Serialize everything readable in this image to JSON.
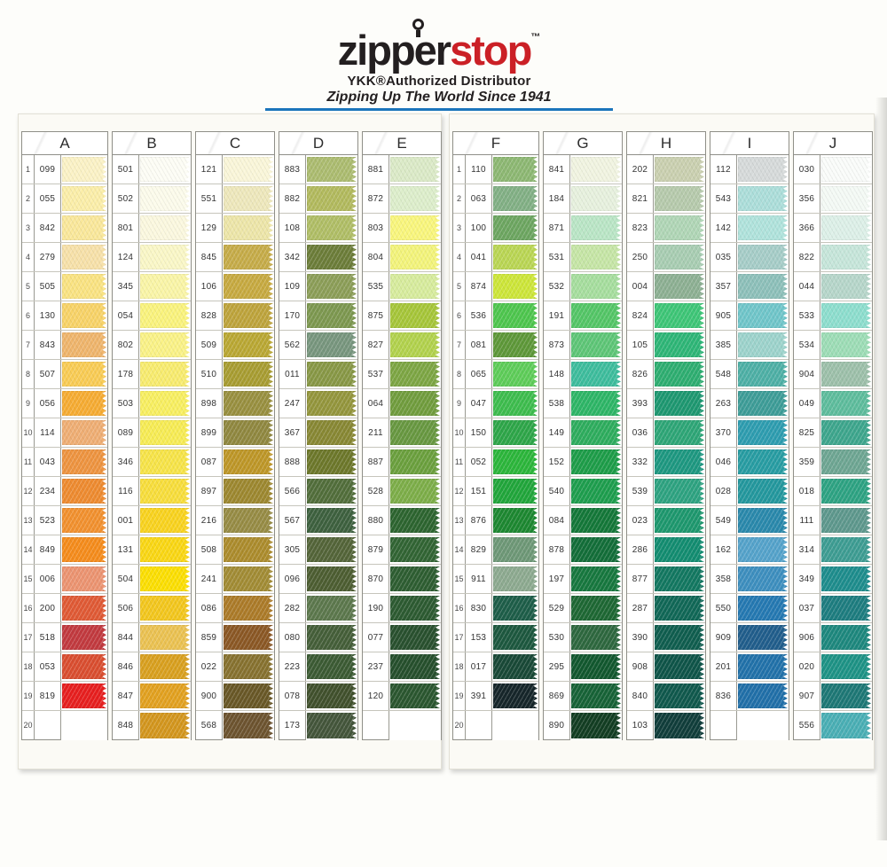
{
  "logo": {
    "brand_black": "zipper",
    "brand_red": "stop",
    "tm": "™",
    "line1": "YKK®Authorized Distributor",
    "line2": "Zipping Up The World Since 1941",
    "accent_red": "#CB2026",
    "accent_blue": "#1B75BB"
  },
  "icons": {
    "zipper_pull": "zipper-pull-ring"
  },
  "panels": [
    {
      "side": "left",
      "row_numbers": [
        "1",
        "2",
        "3",
        "4",
        "5",
        "6",
        "7",
        "8",
        "9",
        "10",
        "11",
        "12",
        "13",
        "14",
        "15",
        "16",
        "17",
        "18",
        "19",
        "20"
      ],
      "columns": [
        {
          "letter": "A",
          "rows": [
            {
              "code": "099",
              "color": "#FBF2C6"
            },
            {
              "code": "055",
              "color": "#FBEEA9"
            },
            {
              "code": "842",
              "color": "#FAE89B"
            },
            {
              "code": "279",
              "color": "#F7E1A9"
            },
            {
              "code": "505",
              "color": "#FAE382"
            },
            {
              "code": "130",
              "color": "#F8D368"
            },
            {
              "code": "843",
              "color": "#EFB56C"
            },
            {
              "code": "507",
              "color": "#F9CC55"
            },
            {
              "code": "056",
              "color": "#F6AC33"
            },
            {
              "code": "114",
              "color": "#EFAE74"
            },
            {
              "code": "043",
              "color": "#EE9440"
            },
            {
              "code": "234",
              "color": "#EE8B30"
            },
            {
              "code": "523",
              "color": "#F2912F"
            },
            {
              "code": "849",
              "color": "#F58C1C"
            },
            {
              "code": "006",
              "color": "#EC9471"
            },
            {
              "code": "200",
              "color": "#E05A35"
            },
            {
              "code": "518",
              "color": "#C23A3F"
            },
            {
              "code": "053",
              "color": "#DA4E30"
            },
            {
              "code": "819",
              "color": "#E71F1F"
            },
            {
              "code": "",
              "color": null
            }
          ]
        },
        {
          "letter": "B",
          "rows": [
            {
              "code": "501",
              "color": "#FDFDF5"
            },
            {
              "code": "502",
              "color": "#FCFBEB"
            },
            {
              "code": "801",
              "color": "#FBF8DF"
            },
            {
              "code": "124",
              "color": "#FAF7C7"
            },
            {
              "code": "345",
              "color": "#FAF5A7"
            },
            {
              "code": "054",
              "color": "#FAF37D"
            },
            {
              "code": "802",
              "color": "#FAF287"
            },
            {
              "code": "178",
              "color": "#F8EC6F"
            },
            {
              "code": "503",
              "color": "#F8EF61"
            },
            {
              "code": "089",
              "color": "#F7EC55"
            },
            {
              "code": "346",
              "color": "#F7E449"
            },
            {
              "code": "116",
              "color": "#F8DE3C"
            },
            {
              "code": "001",
              "color": "#F9D31F"
            },
            {
              "code": "131",
              "color": "#FAD714"
            },
            {
              "code": "504",
              "color": "#FCDF02"
            },
            {
              "code": "506",
              "color": "#F3C71E"
            },
            {
              "code": "844",
              "color": "#EBC252"
            },
            {
              "code": "846",
              "color": "#D9A01F"
            },
            {
              "code": "847",
              "color": "#E2A120"
            },
            {
              "code": "848",
              "color": "#D3961E"
            }
          ]
        },
        {
          "letter": "C",
          "rows": [
            {
              "code": "121",
              "color": "#FAF6D9"
            },
            {
              "code": "551",
              "color": "#EEE8BC"
            },
            {
              "code": "129",
              "color": "#EDE6A9"
            },
            {
              "code": "845",
              "color": "#C6AC49"
            },
            {
              "code": "106",
              "color": "#C7AA41"
            },
            {
              "code": "828",
              "color": "#BEA43C"
            },
            {
              "code": "509",
              "color": "#BAA834"
            },
            {
              "code": "510",
              "color": "#A89D32"
            },
            {
              "code": "898",
              "color": "#999040"
            },
            {
              "code": "899",
              "color": "#908840"
            },
            {
              "code": "087",
              "color": "#BE9728"
            },
            {
              "code": "897",
              "color": "#9D8830"
            },
            {
              "code": "216",
              "color": "#978C45"
            },
            {
              "code": "508",
              "color": "#AC8C2D"
            },
            {
              "code": "241",
              "color": "#A28C35"
            },
            {
              "code": "086",
              "color": "#AC7B29"
            },
            {
              "code": "859",
              "color": "#8B5825"
            },
            {
              "code": "022",
              "color": "#877230"
            },
            {
              "code": "900",
              "color": "#695827"
            },
            {
              "code": "568",
              "color": "#6D5430"
            }
          ]
        },
        {
          "letter": "D",
          "rows": [
            {
              "code": "883",
              "color": "#ACBC70"
            },
            {
              "code": "882",
              "color": "#B2BA5E"
            },
            {
              "code": "108",
              "color": "#B0BE66"
            },
            {
              "code": "342",
              "color": "#6C7D39"
            },
            {
              "code": "109",
              "color": "#8C9E58"
            },
            {
              "code": "170",
              "color": "#7D9850"
            },
            {
              "code": "562",
              "color": "#78967E"
            },
            {
              "code": "011",
              "color": "#889846"
            },
            {
              "code": "247",
              "color": "#94963D"
            },
            {
              "code": "367",
              "color": "#888834"
            },
            {
              "code": "888",
              "color": "#6D782B"
            },
            {
              "code": "566",
              "color": "#526E3B"
            },
            {
              "code": "567",
              "color": "#3E613F"
            },
            {
              "code": "305",
              "color": "#546539"
            },
            {
              "code": "096",
              "color": "#4D5E32"
            },
            {
              "code": "282",
              "color": "#5C784D"
            },
            {
              "code": "080",
              "color": "#455F39"
            },
            {
              "code": "223",
              "color": "#3C5B34"
            },
            {
              "code": "078",
              "color": "#41512D"
            },
            {
              "code": "173",
              "color": "#44563B"
            }
          ]
        },
        {
          "letter": "E",
          "rows": [
            {
              "code": "881",
              "color": "#DBEAC7"
            },
            {
              "code": "872",
              "color": "#DDEECB"
            },
            {
              "code": "803",
              "color": "#F9F67D"
            },
            {
              "code": "804",
              "color": "#F3F47B"
            },
            {
              "code": "535",
              "color": "#D7EC9D"
            },
            {
              "code": "875",
              "color": "#A6C639"
            },
            {
              "code": "827",
              "color": "#B2D24D"
            },
            {
              "code": "537",
              "color": "#7DA644"
            },
            {
              "code": "064",
              "color": "#719D3E"
            },
            {
              "code": "211",
              "color": "#689841"
            },
            {
              "code": "887",
              "color": "#6BA03E"
            },
            {
              "code": "528",
              "color": "#7DAE49"
            },
            {
              "code": "880",
              "color": "#2D6530"
            },
            {
              "code": "879",
              "color": "#326534"
            },
            {
              "code": "870",
              "color": "#2E5E32"
            },
            {
              "code": "190",
              "color": "#2D5B32"
            },
            {
              "code": "077",
              "color": "#29512F"
            },
            {
              "code": "237",
              "color": "#26502D"
            },
            {
              "code": "120",
              "color": "#2B5730"
            },
            {
              "code": "",
              "color": null
            }
          ]
        }
      ]
    },
    {
      "side": "right",
      "row_numbers": [
        "1",
        "2",
        "3",
        "4",
        "5",
        "6",
        "7",
        "8",
        "9",
        "10",
        "11",
        "12",
        "13",
        "14",
        "15",
        "16",
        "17",
        "18",
        "19",
        "20"
      ],
      "columns": [
        {
          "letter": "F",
          "rows": [
            {
              "code": "110",
              "color": "#8DB873"
            },
            {
              "code": "063",
              "color": "#82B085"
            },
            {
              "code": "100",
              "color": "#6DA661"
            },
            {
              "code": "041",
              "color": "#BAD654"
            },
            {
              "code": "874",
              "color": "#CDE639"
            },
            {
              "code": "536",
              "color": "#4EC64E"
            },
            {
              "code": "081",
              "color": "#5E9839"
            },
            {
              "code": "065",
              "color": "#5ECD59"
            },
            {
              "code": "047",
              "color": "#3EBD4E"
            },
            {
              "code": "150",
              "color": "#2EA649"
            },
            {
              "code": "052",
              "color": "#2CB63B"
            },
            {
              "code": "151",
              "color": "#21A63B"
            },
            {
              "code": "876",
              "color": "#1D8831"
            },
            {
              "code": "829",
              "color": "#6E9877"
            },
            {
              "code": "911",
              "color": "#8DAA90"
            },
            {
              "code": "830",
              "color": "#1E5E49"
            },
            {
              "code": "153",
              "color": "#1D583F"
            },
            {
              "code": "017",
              "color": "#194937"
            },
            {
              "code": "391",
              "color": "#16262A"
            },
            {
              "code": "",
              "color": null
            }
          ]
        },
        {
          "letter": "G",
          "rows": [
            {
              "code": "841",
              "color": "#F1F4E1"
            },
            {
              "code": "184",
              "color": "#E7F1DE"
            },
            {
              "code": "871",
              "color": "#BAE6C6"
            },
            {
              "code": "531",
              "color": "#C6E6A6"
            },
            {
              "code": "532",
              "color": "#A6DE9E"
            },
            {
              "code": "191",
              "color": "#54C667"
            },
            {
              "code": "873",
              "color": "#5EC677"
            },
            {
              "code": "148",
              "color": "#3EBD9D"
            },
            {
              "code": "538",
              "color": "#2EB667"
            },
            {
              "code": "149",
              "color": "#2EAD5E"
            },
            {
              "code": "152",
              "color": "#1E9D49"
            },
            {
              "code": "540",
              "color": "#1E9E4E"
            },
            {
              "code": "084",
              "color": "#147839"
            },
            {
              "code": "878",
              "color": "#136E39"
            },
            {
              "code": "197",
              "color": "#17783F"
            },
            {
              "code": "529",
              "color": "#1E6834"
            },
            {
              "code": "530",
              "color": "#2E683F"
            },
            {
              "code": "295",
              "color": "#12582F"
            },
            {
              "code": "869",
              "color": "#176337"
            },
            {
              "code": "890",
              "color": "#133E23"
            }
          ]
        },
        {
          "letter": "H",
          "rows": [
            {
              "code": "202",
              "color": "#CAD0B0"
            },
            {
              "code": "821",
              "color": "#B6CAAC"
            },
            {
              "code": "823",
              "color": "#B0D6B6"
            },
            {
              "code": "250",
              "color": "#A8CDB2"
            },
            {
              "code": "004",
              "color": "#8DB093"
            },
            {
              "code": "824",
              "color": "#3EC677"
            },
            {
              "code": "105",
              "color": "#2EB677"
            },
            {
              "code": "826",
              "color": "#2EAE71"
            },
            {
              "code": "393",
              "color": "#1E9871"
            },
            {
              "code": "036",
              "color": "#2EA677"
            },
            {
              "code": "332",
              "color": "#1E9881"
            },
            {
              "code": "539",
              "color": "#2EA381"
            },
            {
              "code": "023",
              "color": "#1E986E"
            },
            {
              "code": "286",
              "color": "#138D71"
            },
            {
              "code": "877",
              "color": "#137861"
            },
            {
              "code": "287",
              "color": "#116857"
            },
            {
              "code": "390",
              "color": "#105E4F"
            },
            {
              "code": "908",
              "color": "#0F5549"
            },
            {
              "code": "840",
              "color": "#10594D"
            },
            {
              "code": "103",
              "color": "#113E3B"
            }
          ]
        },
        {
          "letter": "I",
          "rows": [
            {
              "code": "112",
              "color": "#D6DADA"
            },
            {
              "code": "543",
              "color": "#ACDEDA"
            },
            {
              "code": "142",
              "color": "#B0E3DC"
            },
            {
              "code": "035",
              "color": "#A6CDC8"
            },
            {
              "code": "357",
              "color": "#8DC0BA"
            },
            {
              "code": "905",
              "color": "#70C6CA"
            },
            {
              "code": "385",
              "color": "#9DD3CC"
            },
            {
              "code": "548",
              "color": "#4EB0A6"
            },
            {
              "code": "263",
              "color": "#3E9D98"
            },
            {
              "code": "370",
              "color": "#2E9DB0"
            },
            {
              "code": "046",
              "color": "#289DA3"
            },
            {
              "code": "028",
              "color": "#24989E"
            },
            {
              "code": "549",
              "color": "#2A89AC"
            },
            {
              "code": "162",
              "color": "#55A3CB"
            },
            {
              "code": "358",
              "color": "#3E8FBF"
            },
            {
              "code": "550",
              "color": "#2579B2"
            },
            {
              "code": "909",
              "color": "#215E8C"
            },
            {
              "code": "201",
              "color": "#2272AA"
            },
            {
              "code": "836",
              "color": "#2170A9"
            },
            {
              "code": "",
              "color": null
            }
          ]
        },
        {
          "letter": "J",
          "rows": [
            {
              "code": "030",
              "color": "#FAFCFA"
            },
            {
              "code": "356",
              "color": "#F4FAF5"
            },
            {
              "code": "366",
              "color": "#DDF0E8"
            },
            {
              "code": "822",
              "color": "#C6E6DA"
            },
            {
              "code": "044",
              "color": "#B6D6CA"
            },
            {
              "code": "533",
              "color": "#8DDECE"
            },
            {
              "code": "534",
              "color": "#9DDDB6"
            },
            {
              "code": "904",
              "color": "#9DC0AA"
            },
            {
              "code": "049",
              "color": "#5EBD9D"
            },
            {
              "code": "825",
              "color": "#3EA68D"
            },
            {
              "code": "359",
              "color": "#6EA693"
            },
            {
              "code": "018",
              "color": "#2EA383"
            },
            {
              "code": "111",
              "color": "#5E988D"
            },
            {
              "code": "314",
              "color": "#3E9D93"
            },
            {
              "code": "349",
              "color": "#1E8D8D"
            },
            {
              "code": "037",
              "color": "#1E7D80"
            },
            {
              "code": "906",
              "color": "#1E887E"
            },
            {
              "code": "020",
              "color": "#1E9386"
            },
            {
              "code": "907",
              "color": "#1E7876"
            },
            {
              "code": "556",
              "color": "#4AAFB5"
            }
          ]
        }
      ]
    }
  ]
}
